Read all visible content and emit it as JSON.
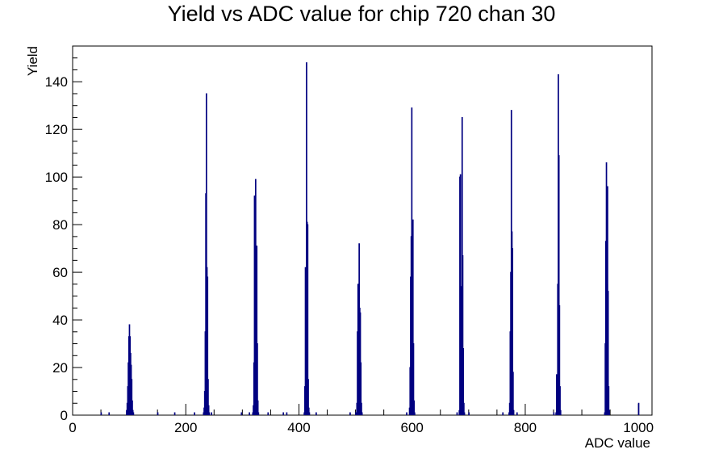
{
  "chart_data": {
    "type": "bar",
    "title": "Yield vs ADC value for chip 720 chan 30",
    "xlabel": "ADC value",
    "ylabel": "Yield",
    "xlim": [
      0,
      1024
    ],
    "ylim": [
      0,
      155
    ],
    "xticks": [
      0,
      200,
      400,
      600,
      800,
      1000
    ],
    "yticks": [
      0,
      20,
      40,
      60,
      80,
      100,
      120,
      140
    ],
    "grid": false,
    "legend": "none",
    "line_color": "#000080",
    "bins": [
      [
        50,
        1
      ],
      [
        64,
        1
      ],
      [
        95,
        2
      ],
      [
        96,
        5
      ],
      [
        97,
        12
      ],
      [
        98,
        22
      ],
      [
        99,
        33
      ],
      [
        100,
        38
      ],
      [
        101,
        33
      ],
      [
        102,
        26
      ],
      [
        103,
        21
      ],
      [
        104,
        15
      ],
      [
        105,
        6
      ],
      [
        106,
        2
      ],
      [
        107,
        1
      ],
      [
        150,
        1
      ],
      [
        180,
        1
      ],
      [
        215,
        1
      ],
      [
        231,
        1
      ],
      [
        232,
        3
      ],
      [
        233,
        10
      ],
      [
        234,
        35
      ],
      [
        235,
        93
      ],
      [
        236,
        135
      ],
      [
        237,
        62
      ],
      [
        238,
        58
      ],
      [
        239,
        15
      ],
      [
        240,
        4
      ],
      [
        241,
        1
      ],
      [
        245,
        1
      ],
      [
        298,
        1
      ],
      [
        312,
        1
      ],
      [
        318,
        1
      ],
      [
        319,
        4
      ],
      [
        320,
        22
      ],
      [
        321,
        92
      ],
      [
        322,
        92
      ],
      [
        323,
        99
      ],
      [
        324,
        48
      ],
      [
        325,
        71
      ],
      [
        326,
        30
      ],
      [
        327,
        6
      ],
      [
        328,
        1
      ],
      [
        345,
        1
      ],
      [
        372,
        1
      ],
      [
        378,
        1
      ],
      [
        409,
        1
      ],
      [
        410,
        12
      ],
      [
        411,
        62
      ],
      [
        412,
        40
      ],
      [
        413,
        148
      ],
      [
        414,
        81
      ],
      [
        415,
        80
      ],
      [
        416,
        15
      ],
      [
        417,
        3
      ],
      [
        418,
        1
      ],
      [
        430,
        1
      ],
      [
        490,
        1
      ],
      [
        500,
        1
      ],
      [
        502,
        5
      ],
      [
        503,
        35
      ],
      [
        504,
        55
      ],
      [
        505,
        50
      ],
      [
        506,
        72
      ],
      [
        507,
        45
      ],
      [
        508,
        43
      ],
      [
        509,
        22
      ],
      [
        510,
        5
      ],
      [
        511,
        1
      ],
      [
        590,
        1
      ],
      [
        595,
        3
      ],
      [
        596,
        20
      ],
      [
        597,
        58
      ],
      [
        598,
        75
      ],
      [
        599,
        129
      ],
      [
        600,
        65
      ],
      [
        601,
        82
      ],
      [
        602,
        30
      ],
      [
        603,
        6
      ],
      [
        604,
        1
      ],
      [
        679,
        1
      ],
      [
        683,
        2
      ],
      [
        684,
        100
      ],
      [
        685,
        101
      ],
      [
        686,
        54
      ],
      [
        687,
        53
      ],
      [
        688,
        125
      ],
      [
        689,
        67
      ],
      [
        690,
        28
      ],
      [
        691,
        5
      ],
      [
        692,
        1
      ],
      [
        700,
        1
      ],
      [
        760,
        1
      ],
      [
        771,
        1
      ],
      [
        772,
        5
      ],
      [
        773,
        35
      ],
      [
        774,
        60
      ],
      [
        775,
        128
      ],
      [
        776,
        77
      ],
      [
        777,
        70
      ],
      [
        778,
        18
      ],
      [
        779,
        2
      ],
      [
        785,
        1
      ],
      [
        850,
        1
      ],
      [
        854,
        1
      ],
      [
        855,
        17
      ],
      [
        856,
        15
      ],
      [
        857,
        55
      ],
      [
        858,
        143
      ],
      [
        859,
        109
      ],
      [
        860,
        46
      ],
      [
        861,
        12
      ],
      [
        862,
        2
      ],
      [
        940,
        1
      ],
      [
        941,
        30
      ],
      [
        942,
        73
      ],
      [
        943,
        106
      ],
      [
        944,
        55
      ],
      [
        945,
        96
      ],
      [
        946,
        52
      ],
      [
        947,
        12
      ],
      [
        948,
        2
      ],
      [
        1000,
        5
      ]
    ]
  }
}
